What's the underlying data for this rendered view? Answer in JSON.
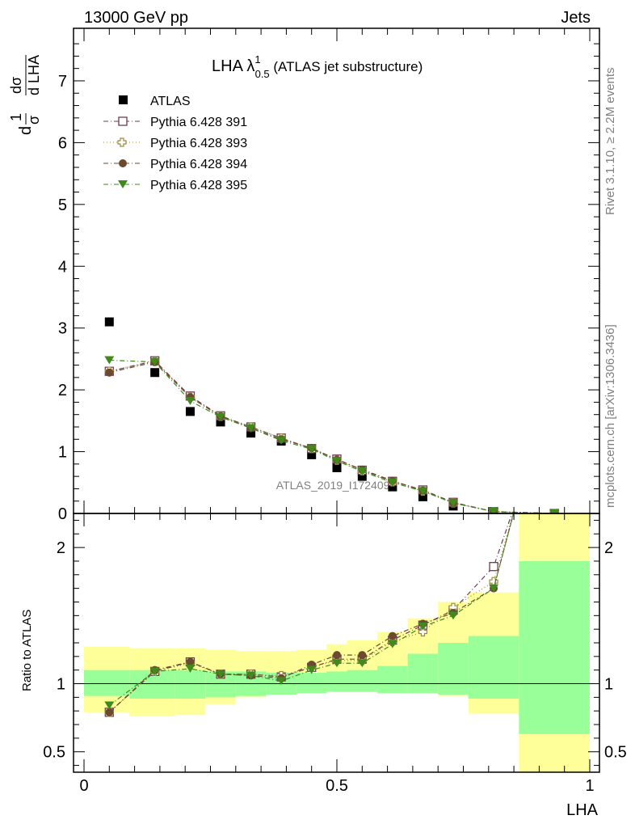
{
  "header": {
    "left": "13000 GeV pp",
    "right": "Jets"
  },
  "side_labels": {
    "rivet": "Rivet 3.1.10, ≥ 2.2M events",
    "mcplots": "mcplots.cern.ch [arXiv:1306.3436]"
  },
  "watermark": "ATLAS_2019_I1724098",
  "title": {
    "main": "LHA λ",
    "sup": "1",
    "sub": "0.5",
    "rest": " (ATLAS jet substructure)"
  },
  "colors": {
    "data": "#000000",
    "p391": "#6b3d56",
    "p393": "#9a8a3c",
    "p394": "#6b4a2f",
    "p395": "#3f8a1a",
    "band_inner": "#99ff99",
    "band_outer": "#ffff99"
  },
  "chart_data": [
    {
      "type": "scatter",
      "title": "LHA λ^1_0.5 (ATLAS jet substructure)",
      "xlabel": "",
      "ylabel": "1/σ dσ/d LHA",
      "xlim": [
        0,
        1
      ],
      "ylim": [
        0,
        7.85
      ],
      "yticks": [
        0,
        1,
        2,
        3,
        4,
        5,
        6,
        7
      ],
      "legend_position": "top-left",
      "x": [
        0.05,
        0.14,
        0.21,
        0.27,
        0.33,
        0.39,
        0.45,
        0.5,
        0.55,
        0.61,
        0.67,
        0.73,
        0.81,
        0.93
      ],
      "series": [
        {
          "name": "ATLAS",
          "marker": "square-filled",
          "values": [
            3.1,
            2.28,
            1.65,
            1.48,
            1.3,
            1.17,
            0.95,
            0.74,
            0.6,
            0.43,
            0.27,
            0.12,
            0.02,
            0.0
          ]
        },
        {
          "name": "Pythia 6.428 391",
          "marker": "square-open",
          "values": [
            2.3,
            2.47,
            1.9,
            1.58,
            1.4,
            1.22,
            1.05,
            0.88,
            0.7,
            0.52,
            0.38,
            0.18,
            0.03,
            0.0
          ]
        },
        {
          "name": "Pythia 6.428 393",
          "marker": "cross-open",
          "values": [
            2.3,
            2.46,
            1.88,
            1.57,
            1.4,
            1.22,
            1.05,
            0.86,
            0.69,
            0.51,
            0.36,
            0.17,
            0.03,
            0.0
          ]
        },
        {
          "name": "Pythia 6.428 394",
          "marker": "circle-filled",
          "values": [
            2.28,
            2.45,
            1.88,
            1.57,
            1.38,
            1.2,
            1.06,
            0.87,
            0.71,
            0.53,
            0.37,
            0.17,
            0.03,
            0.0
          ]
        },
        {
          "name": "Pythia 6.428 395",
          "marker": "triangle-down-filled",
          "values": [
            2.48,
            2.45,
            1.82,
            1.56,
            1.38,
            1.18,
            1.04,
            0.85,
            0.68,
            0.5,
            0.36,
            0.17,
            0.03,
            0.0
          ]
        }
      ]
    },
    {
      "type": "scatter",
      "title": "",
      "xlabel": "LHA",
      "ylabel": "Ratio to ATLAS",
      "xlim": [
        0,
        1
      ],
      "ylim": [
        0.35,
        2.25
      ],
      "yticks": [
        0.5,
        1,
        2
      ],
      "xticks": [
        0,
        0.5,
        1
      ],
      "reference_line": 1,
      "x": [
        0.05,
        0.14,
        0.21,
        0.27,
        0.33,
        0.39,
        0.45,
        0.5,
        0.55,
        0.61,
        0.67,
        0.73,
        0.81
      ],
      "series": [
        {
          "name": "Pythia 6.428 391",
          "marker": "square-open",
          "values": [
            0.79,
            1.09,
            1.16,
            1.07,
            1.07,
            1.05,
            1.12,
            1.18,
            1.18,
            1.32,
            1.43,
            1.54,
            1.86
          ]
        },
        {
          "name": "Pythia 6.428 393",
          "marker": "cross-open",
          "values": [
            0.79,
            1.09,
            1.15,
            1.07,
            1.07,
            1.06,
            1.12,
            1.17,
            1.17,
            1.31,
            1.38,
            1.56,
            1.75
          ]
        },
        {
          "name": "Pythia 6.428 394",
          "marker": "circle-filled",
          "values": [
            0.79,
            1.1,
            1.16,
            1.07,
            1.06,
            1.04,
            1.14,
            1.21,
            1.21,
            1.35,
            1.44,
            1.52,
            1.7
          ]
        },
        {
          "name": "Pythia 6.428 395",
          "marker": "triangle-down-filled",
          "values": [
            0.84,
            1.09,
            1.11,
            1.07,
            1.06,
            1.02,
            1.1,
            1.15,
            1.15,
            1.29,
            1.42,
            1.5,
            1.7
          ]
        }
      ],
      "bands": {
        "edges": [
          0,
          0.09,
          0.18,
          0.24,
          0.3,
          0.36,
          0.42,
          0.48,
          0.52,
          0.58,
          0.64,
          0.7,
          0.76,
          0.86,
          1.0
        ],
        "inner_lo": [
          0.91,
          0.89,
          0.89,
          0.9,
          0.91,
          0.92,
          0.93,
          0.94,
          0.94,
          0.93,
          0.93,
          0.92,
          0.89,
          0.63
        ],
        "inner_hi": [
          1.1,
          1.1,
          1.1,
          1.09,
          1.09,
          1.08,
          1.08,
          1.09,
          1.1,
          1.13,
          1.22,
          1.3,
          1.35,
          1.9
        ],
        "outer_lo": [
          0.79,
          0.76,
          0.77,
          0.85,
          0.9,
          0.93,
          0.94,
          0.95,
          0.95,
          0.94,
          0.93,
          0.91,
          0.78,
          0.35
        ],
        "outer_hi": [
          1.27,
          1.26,
          1.26,
          1.25,
          1.24,
          1.24,
          1.25,
          1.29,
          1.32,
          1.38,
          1.48,
          1.6,
          1.67,
          2.25
        ]
      }
    }
  ]
}
